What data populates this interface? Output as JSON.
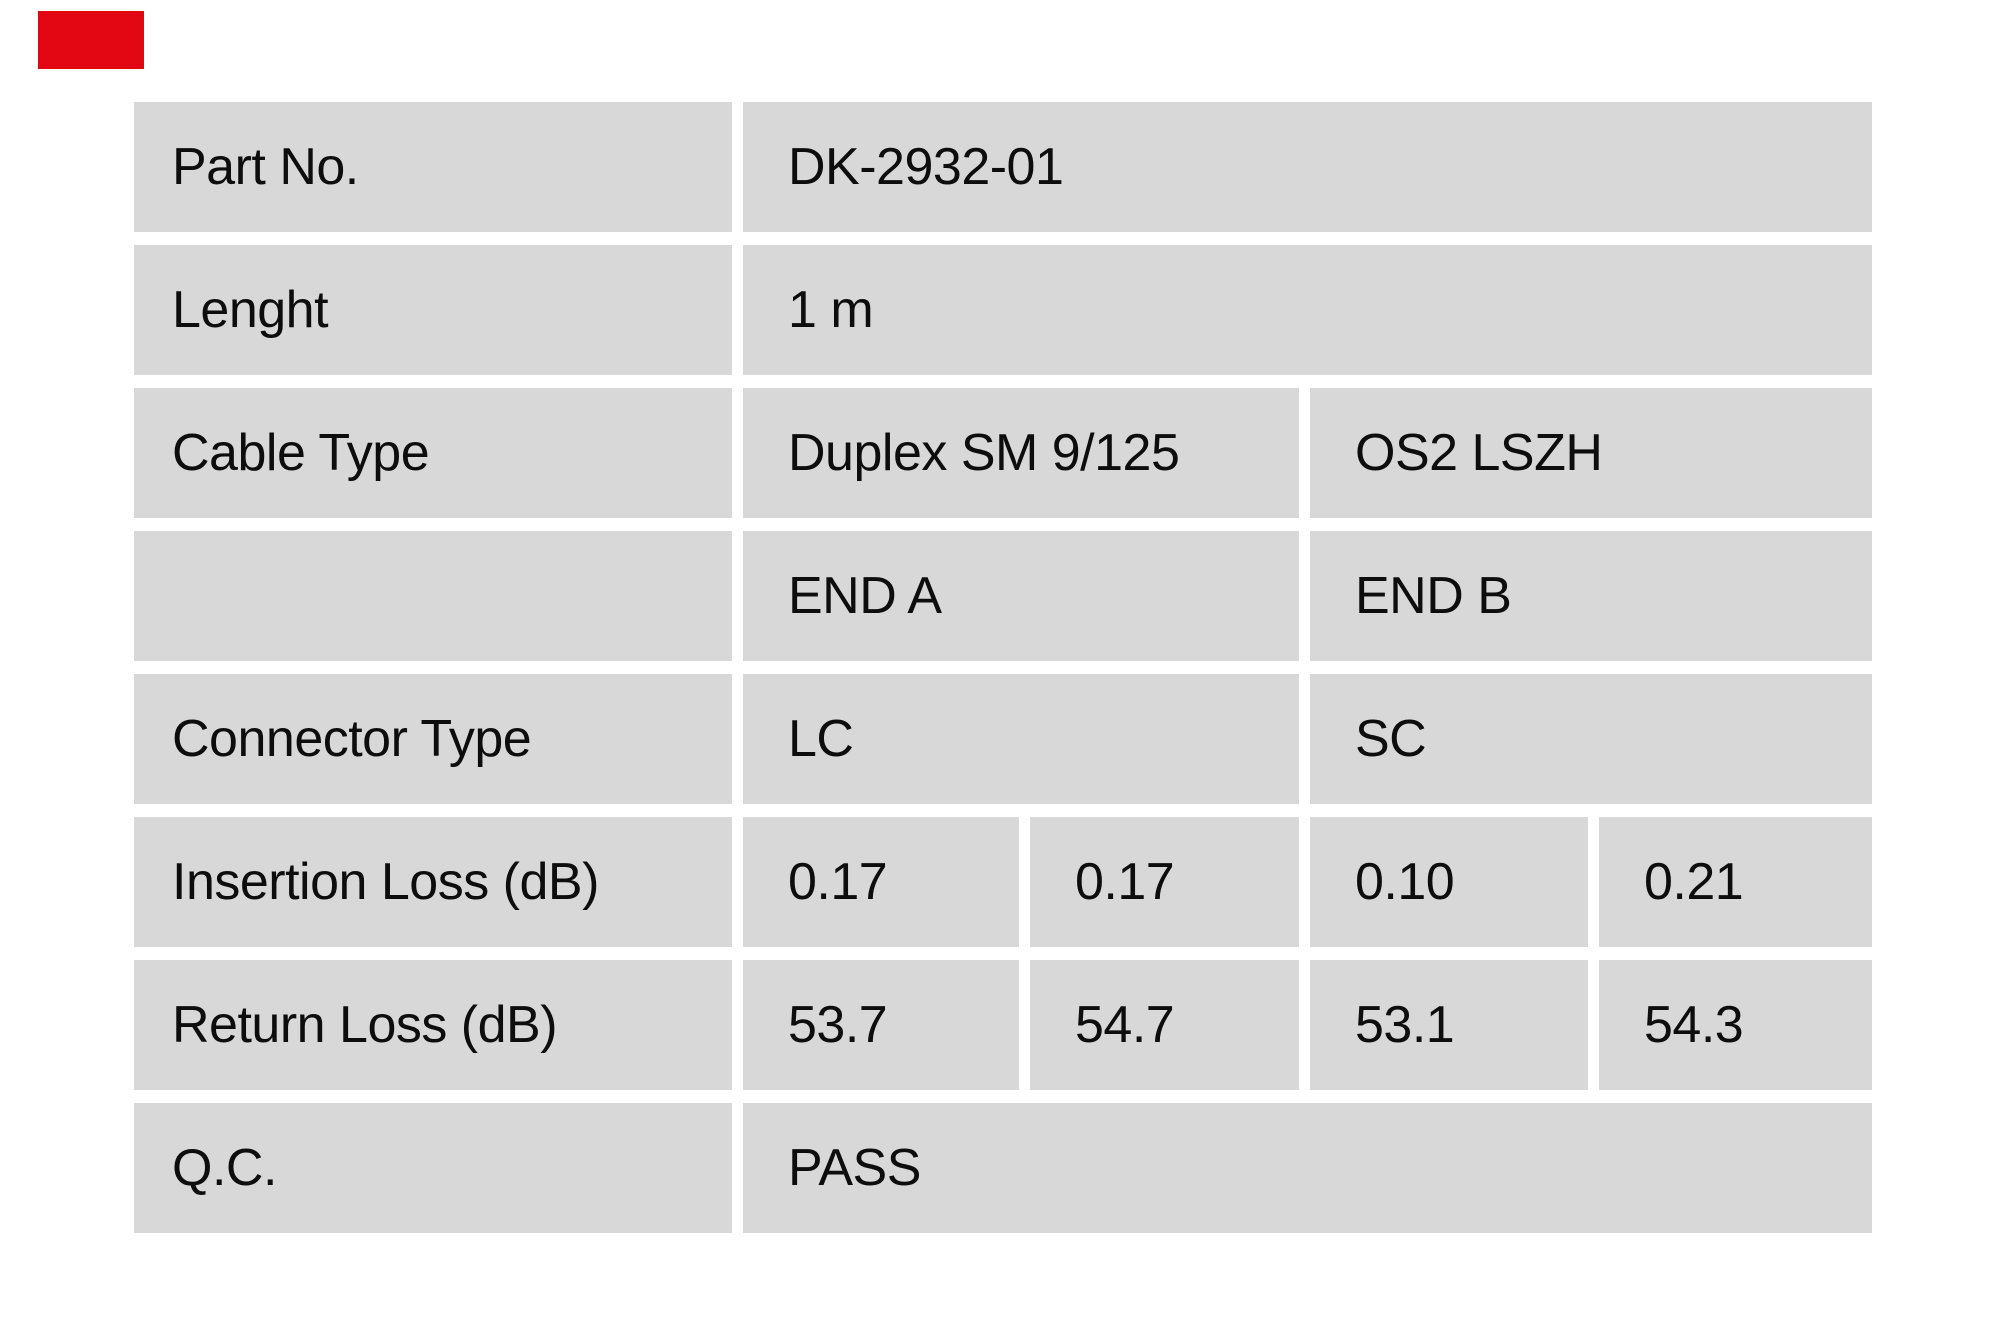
{
  "colors": {
    "logo_red": "#e30613",
    "cell_bg": "#d8d8d8",
    "text": "#0d0d0d",
    "page_bg": "#ffffff"
  },
  "logo": {
    "name": "red-brand-block"
  },
  "table": {
    "rows": [
      {
        "label": "Part No.",
        "values": [
          "DK-2932-01"
        ]
      },
      {
        "label": "Lenght",
        "values": [
          "1 m"
        ]
      },
      {
        "label": "Cable Type",
        "values": [
          "Duplex SM 9/125",
          "OS2 LSZH"
        ]
      },
      {
        "label": "",
        "values": [
          "END A",
          "END B"
        ]
      },
      {
        "label": "Connector Type",
        "values": [
          "LC",
          "SC"
        ]
      },
      {
        "label": "Insertion Loss (dB)",
        "values": [
          "0.17",
          "0.17",
          "0.10",
          "0.21"
        ]
      },
      {
        "label": "Return Loss (dB)",
        "values": [
          "53.7",
          "54.7",
          "53.1",
          "54.3"
        ]
      },
      {
        "label": "Q.C.",
        "values": [
          "PASS"
        ]
      }
    ]
  }
}
